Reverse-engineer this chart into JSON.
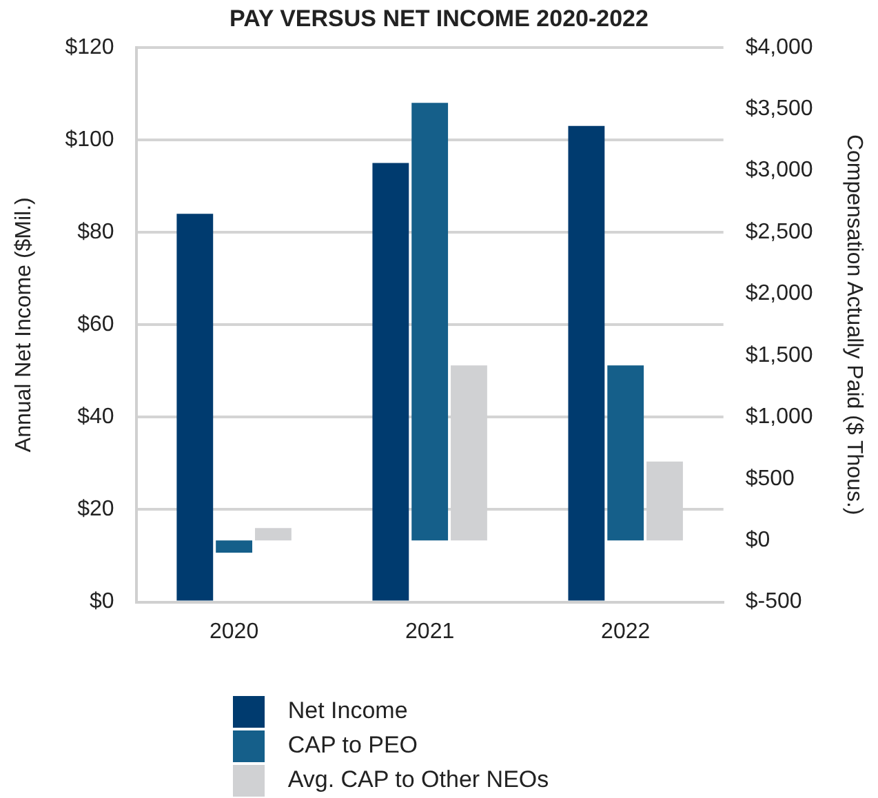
{
  "chart_data": {
    "type": "bar",
    "title": "PAY VERSUS NET INCOME 2020-2022",
    "ylabel": "Annual Net Income ($Mil.)",
    "y2label": "Compensation Actually Paid ($ Thous.)",
    "categories": [
      "2020",
      "2021",
      "2022"
    ],
    "series": [
      {
        "name": "Net Income",
        "color": "#003b6f",
        "values": [
          84,
          95,
          103
        ]
      },
      {
        "name": "CAP to PEO",
        "color": "#155f8a",
        "values": [
          -100,
          3550,
          1420
        ],
        "axis": "y2"
      },
      {
        "name": "Avg. CAP to Other NEOs",
        "color": "#d0d1d3",
        "values": [
          100,
          1420,
          640
        ],
        "axis": "y2"
      }
    ],
    "ylim": [
      0,
      120
    ],
    "yticks": [
      {
        "value": 0,
        "label": "$0"
      },
      {
        "value": 20,
        "label": "$20"
      },
      {
        "value": 40,
        "label": "$40"
      },
      {
        "value": 60,
        "label": "$60"
      },
      {
        "value": 80,
        "label": "$80"
      },
      {
        "value": 100,
        "label": "$100"
      },
      {
        "value": 120,
        "label": "$120"
      }
    ],
    "y2lim": [
      -500,
      4000
    ],
    "y2ticks": [
      {
        "value": -500,
        "label": "$-500"
      },
      {
        "value": 0,
        "label": "$0"
      },
      {
        "value": 500,
        "label": "$500"
      },
      {
        "value": 1000,
        "label": "$1,000"
      },
      {
        "value": 1500,
        "label": "$1,500"
      },
      {
        "value": 2000,
        "label": "$2,000"
      },
      {
        "value": 2500,
        "label": "$2,500"
      },
      {
        "value": 3000,
        "label": "$3,000"
      },
      {
        "value": 3500,
        "label": "$3,500"
      },
      {
        "value": 4000,
        "label": "$4,000"
      }
    ],
    "grid": "y",
    "legend": "bottom"
  }
}
